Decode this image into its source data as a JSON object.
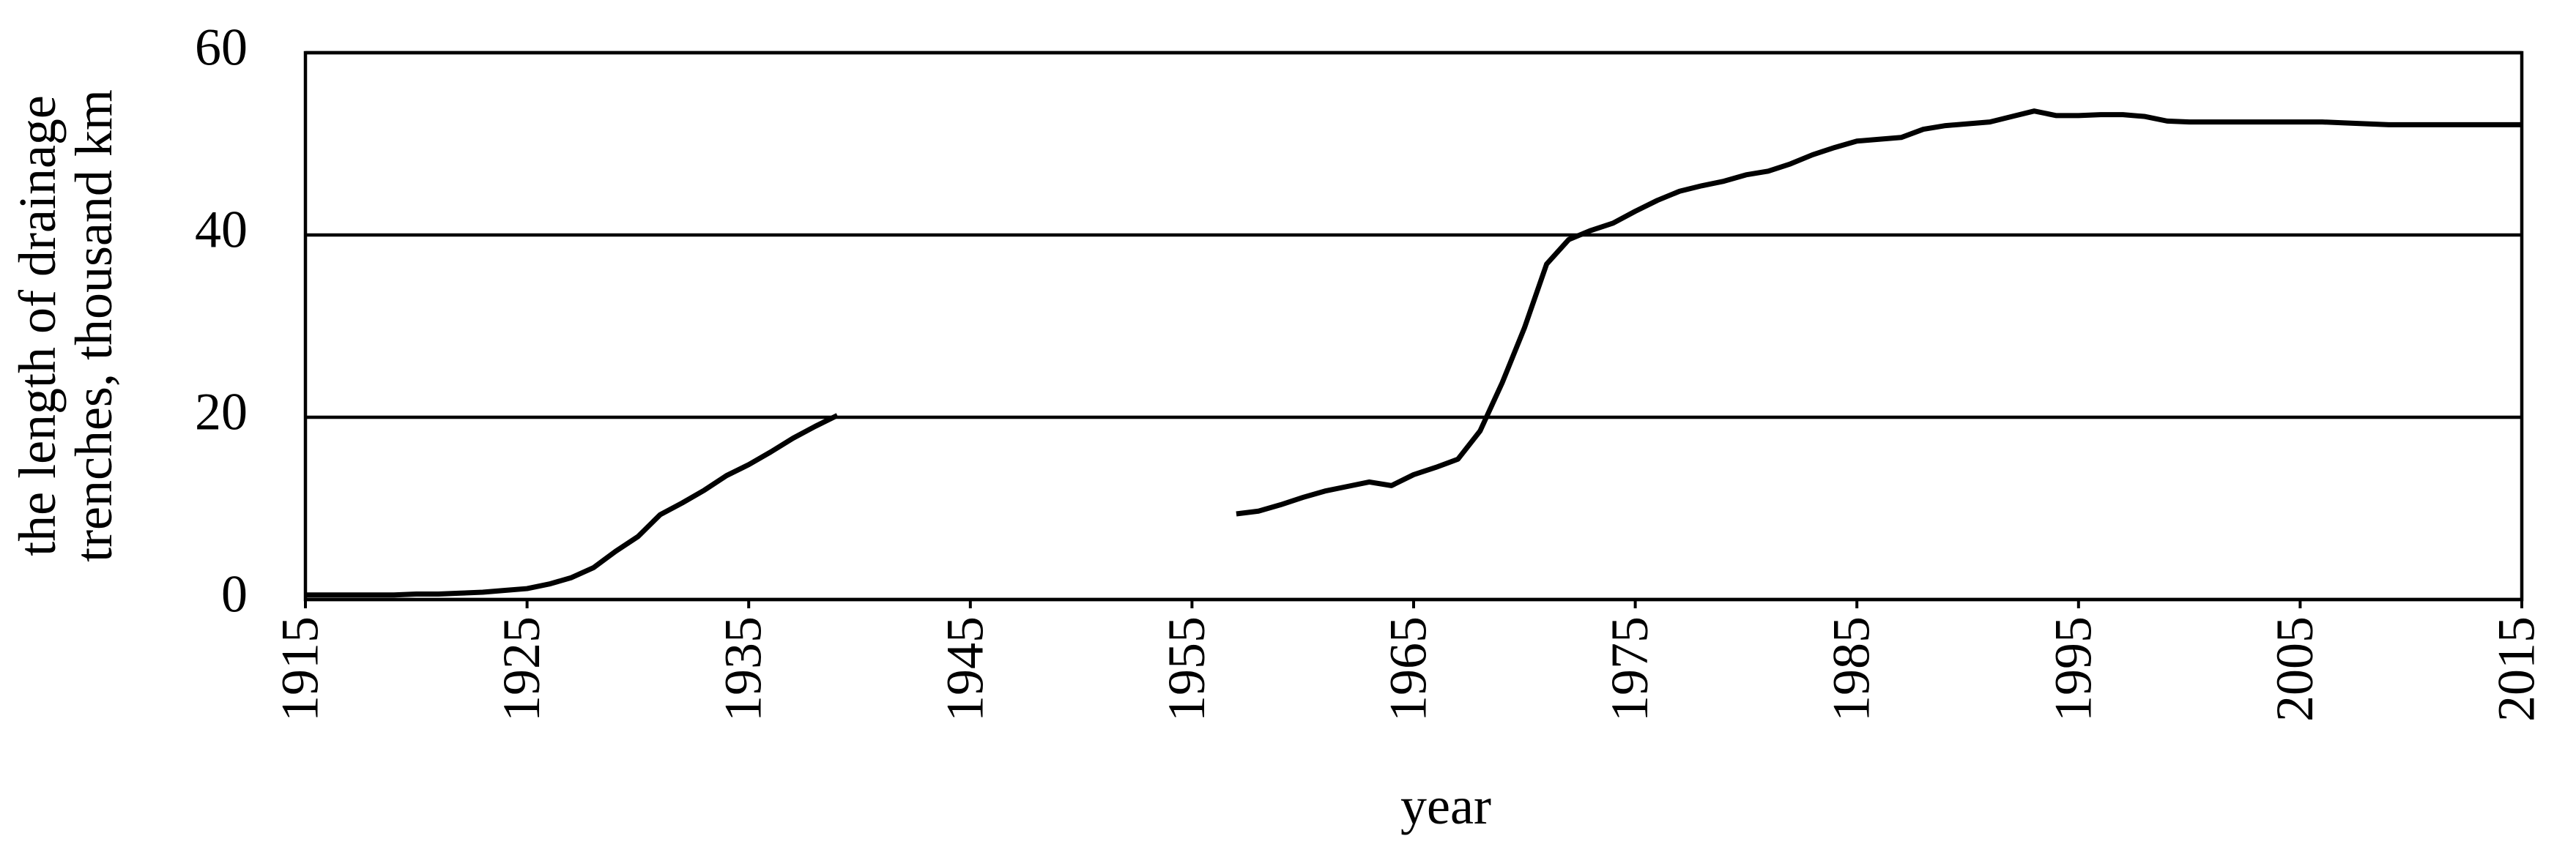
{
  "chart_data": {
    "type": "line",
    "ylabel": [
      "the length of drainage",
      "trenches, thousand km"
    ],
    "xlabel": "year",
    "x": [
      1915,
      1916,
      1917,
      1918,
      1919,
      1920,
      1921,
      1922,
      1923,
      1924,
      1925,
      1926,
      1927,
      1928,
      1929,
      1930,
      1931,
      1932,
      1933,
      1934,
      1935,
      1936,
      1937,
      1938,
      1939,
      1940,
      1941,
      1942,
      1943,
      1944,
      1945,
      1946,
      1947,
      1948,
      1949,
      1950,
      1951,
      1952,
      1953,
      1954,
      1955,
      1956,
      1957,
      1958,
      1959,
      1960,
      1961,
      1962,
      1963,
      1964,
      1965,
      1966,
      1967,
      1968,
      1969,
      1970,
      1971,
      1972,
      1973,
      1974,
      1975,
      1976,
      1977,
      1978,
      1979,
      1980,
      1981,
      1982,
      1983,
      1984,
      1985,
      1986,
      1987,
      1988,
      1989,
      1990,
      1991,
      1992,
      1993,
      1994,
      1995,
      1996,
      1997,
      1998,
      1999,
      2000,
      2001,
      2002,
      2003,
      2004,
      2005,
      2006,
      2007,
      2008,
      2009,
      2010,
      2011,
      2012,
      2013,
      2014,
      2015
    ],
    "series": [
      {
        "color": "#000000",
        "values": [
          0.5,
          0.5,
          0.5,
          0.5,
          0.5,
          0.6,
          0.6,
          0.7,
          0.8,
          1.0,
          1.2,
          1.7,
          2.4,
          3.5,
          5.3,
          6.9,
          9.3,
          10.6,
          12.0,
          13.6,
          14.8,
          16.2,
          17.7,
          19.0,
          20.2,
          null,
          null,
          null,
          null,
          null,
          null,
          null,
          null,
          null,
          null,
          null,
          null,
          null,
          null,
          null,
          null,
          null,
          9.4,
          9.7,
          10.4,
          11.2,
          11.9,
          12.4,
          12.9,
          12.5,
          13.7,
          14.5,
          15.4,
          18.5,
          23.8,
          29.8,
          36.8,
          39.5,
          40.5,
          41.3,
          42.6,
          43.8,
          44.8,
          45.4,
          45.9,
          46.6,
          47.0,
          47.8,
          48.8,
          49.6,
          50.3,
          50.5,
          50.7,
          51.6,
          52.0,
          52.2,
          52.4,
          53.0,
          53.6,
          53.1,
          53.1,
          53.2,
          53.2,
          53.0,
          52.5,
          52.4,
          52.4,
          52.4,
          52.4,
          52.4,
          52.4,
          52.4,
          52.3,
          52.2,
          52.1,
          52.1,
          52.1,
          52.1,
          52.1,
          52.1,
          52.1
        ]
      }
    ],
    "xlim": [
      1915,
      2015
    ],
    "xticks": [
      1915,
      1925,
      1935,
      1945,
      1955,
      1965,
      1975,
      1985,
      1995,
      2005,
      2015
    ],
    "ylim": [
      0,
      60
    ],
    "yticks": [
      0,
      20,
      40,
      60
    ],
    "grid": true
  }
}
